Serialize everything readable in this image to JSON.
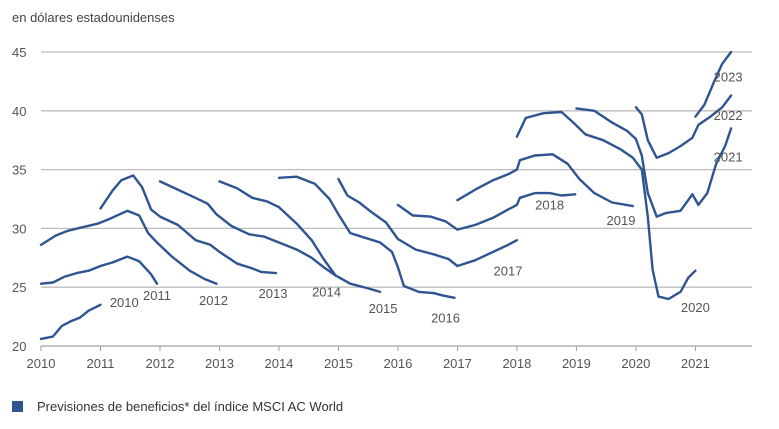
{
  "chart_data": {
    "type": "line",
    "title": "",
    "unit_label": "en dólares estadounidenses",
    "xlabel": "",
    "ylabel": "",
    "xlim": [
      2010,
      2021.75
    ],
    "ylim": [
      20,
      45
    ],
    "x_ticks": [
      "2010",
      "2011",
      "2012",
      "2013",
      "2014",
      "2015",
      "2016",
      "2017",
      "2018",
      "2019",
      "2020",
      "2021"
    ],
    "y_ticks": [
      "20",
      "25",
      "30",
      "35",
      "40",
      "45"
    ],
    "grid": "horizontal",
    "line_color": "#2e5591",
    "legend": {
      "position": "bottom-left",
      "label": "Previsiones de beneficios* del índice MSCI AC World"
    },
    "series": [
      {
        "name": "2010",
        "points": [
          [
            2010.0,
            20.6
          ],
          [
            2010.2,
            20.8
          ],
          [
            2010.35,
            21.7
          ],
          [
            2010.5,
            22.1
          ],
          [
            2010.65,
            22.4
          ],
          [
            2010.8,
            23.0
          ],
          [
            2011.0,
            23.5
          ]
        ]
      },
      {
        "name": "2011",
        "points": [
          [
            2010.0,
            25.3
          ],
          [
            2010.2,
            25.4
          ],
          [
            2010.4,
            25.9
          ],
          [
            2010.6,
            26.2
          ],
          [
            2010.8,
            26.4
          ],
          [
            2011.0,
            26.8
          ],
          [
            2011.2,
            27.1
          ],
          [
            2011.45,
            27.6
          ],
          [
            2011.65,
            27.2
          ],
          [
            2011.85,
            26.1
          ],
          [
            2011.95,
            25.3
          ]
        ]
      },
      {
        "name": "2012",
        "points": [
          [
            2010.0,
            28.6
          ],
          [
            2010.25,
            29.4
          ],
          [
            2010.45,
            29.8
          ],
          [
            2010.7,
            30.1
          ],
          [
            2010.95,
            30.4
          ],
          [
            2011.15,
            30.8
          ],
          [
            2011.45,
            31.5
          ],
          [
            2011.65,
            31.1
          ],
          [
            2011.8,
            29.6
          ],
          [
            2011.95,
            28.8
          ],
          [
            2012.2,
            27.6
          ],
          [
            2012.5,
            26.4
          ],
          [
            2012.75,
            25.7
          ],
          [
            2012.95,
            25.3
          ]
        ]
      },
      {
        "name": "2013",
        "points": [
          [
            2011.0,
            31.7
          ],
          [
            2011.2,
            33.2
          ],
          [
            2011.35,
            34.1
          ],
          [
            2011.55,
            34.5
          ],
          [
            2011.7,
            33.5
          ],
          [
            2011.85,
            31.6
          ],
          [
            2012.0,
            31.0
          ],
          [
            2012.3,
            30.3
          ],
          [
            2012.6,
            29.0
          ],
          [
            2012.85,
            28.6
          ],
          [
            2013.0,
            28.0
          ],
          [
            2013.3,
            27.0
          ],
          [
            2013.55,
            26.6
          ],
          [
            2013.7,
            26.3
          ],
          [
            2013.95,
            26.2
          ]
        ]
      },
      {
        "name": "2014",
        "points": [
          [
            2012.0,
            34.0
          ],
          [
            2012.3,
            33.3
          ],
          [
            2012.55,
            32.7
          ],
          [
            2012.8,
            32.1
          ],
          [
            2012.95,
            31.2
          ],
          [
            2013.2,
            30.2
          ],
          [
            2013.5,
            29.5
          ],
          [
            2013.75,
            29.3
          ],
          [
            2014.0,
            28.8
          ],
          [
            2014.3,
            28.2
          ],
          [
            2014.55,
            27.5
          ],
          [
            2014.75,
            26.7
          ],
          [
            2014.95,
            26.0
          ]
        ]
      },
      {
        "name": "2015",
        "points": [
          [
            2013.0,
            34.0
          ],
          [
            2013.3,
            33.4
          ],
          [
            2013.55,
            32.6
          ],
          [
            2013.8,
            32.3
          ],
          [
            2014.0,
            31.8
          ],
          [
            2014.3,
            30.4
          ],
          [
            2014.55,
            29.0
          ],
          [
            2014.75,
            27.4
          ],
          [
            2014.95,
            26.0
          ],
          [
            2015.2,
            25.3
          ],
          [
            2015.5,
            24.9
          ],
          [
            2015.7,
            24.6
          ]
        ]
      },
      {
        "name": "2016",
        "points": [
          [
            2014.0,
            34.3
          ],
          [
            2014.3,
            34.4
          ],
          [
            2014.6,
            33.8
          ],
          [
            2014.85,
            32.5
          ],
          [
            2015.0,
            31.2
          ],
          [
            2015.2,
            29.6
          ],
          [
            2015.45,
            29.2
          ],
          [
            2015.7,
            28.8
          ],
          [
            2015.9,
            28.0
          ],
          [
            2016.0,
            26.7
          ],
          [
            2016.1,
            25.1
          ],
          [
            2016.35,
            24.6
          ],
          [
            2016.6,
            24.5
          ],
          [
            2016.75,
            24.3
          ],
          [
            2016.95,
            24.1
          ]
        ]
      },
      {
        "name": "2017",
        "points": [
          [
            2015.0,
            34.2
          ],
          [
            2015.15,
            32.8
          ],
          [
            2015.35,
            32.2
          ],
          [
            2015.55,
            31.4
          ],
          [
            2015.8,
            30.5
          ],
          [
            2016.0,
            29.1
          ],
          [
            2016.3,
            28.2
          ],
          [
            2016.6,
            27.8
          ],
          [
            2016.85,
            27.4
          ],
          [
            2017.0,
            26.8
          ],
          [
            2017.3,
            27.3
          ],
          [
            2017.6,
            28.0
          ],
          [
            2017.85,
            28.6
          ],
          [
            2018.0,
            29.0
          ]
        ]
      },
      {
        "name": "2018",
        "points": [
          [
            2016.0,
            32.0
          ],
          [
            2016.25,
            31.1
          ],
          [
            2016.55,
            31.0
          ],
          [
            2016.8,
            30.6
          ],
          [
            2017.0,
            29.9
          ],
          [
            2017.3,
            30.3
          ],
          [
            2017.6,
            30.9
          ],
          [
            2017.85,
            31.6
          ],
          [
            2018.0,
            32.0
          ],
          [
            2018.05,
            32.6
          ],
          [
            2018.3,
            33.0
          ],
          [
            2018.55,
            33.0
          ],
          [
            2018.75,
            32.8
          ],
          [
            2018.98,
            32.9
          ]
        ]
      },
      {
        "name": "2019",
        "points": [
          [
            2017.0,
            32.4
          ],
          [
            2017.3,
            33.3
          ],
          [
            2017.6,
            34.1
          ],
          [
            2017.85,
            34.6
          ],
          [
            2018.0,
            35.0
          ],
          [
            2018.05,
            35.8
          ],
          [
            2018.3,
            36.2
          ],
          [
            2018.6,
            36.3
          ],
          [
            2018.85,
            35.5
          ],
          [
            2019.05,
            34.2
          ],
          [
            2019.3,
            33.0
          ],
          [
            2019.6,
            32.2
          ],
          [
            2019.95,
            31.9
          ]
        ]
      },
      {
        "name": "2020",
        "points": [
          [
            2018.0,
            37.8
          ],
          [
            2018.15,
            39.4
          ],
          [
            2018.45,
            39.8
          ],
          [
            2018.75,
            39.9
          ],
          [
            2018.95,
            39.0
          ],
          [
            2019.15,
            38.0
          ],
          [
            2019.45,
            37.5
          ],
          [
            2019.75,
            36.7
          ],
          [
            2019.95,
            36.0
          ],
          [
            2020.1,
            35.0
          ],
          [
            2020.2,
            31.0
          ],
          [
            2020.28,
            26.5
          ],
          [
            2020.38,
            24.2
          ],
          [
            2020.55,
            24.0
          ],
          [
            2020.75,
            24.6
          ],
          [
            2020.88,
            25.8
          ],
          [
            2021.0,
            26.4
          ]
        ]
      },
      {
        "name": "2021",
        "points": [
          [
            2019.0,
            40.2
          ],
          [
            2019.3,
            40.0
          ],
          [
            2019.6,
            39.0
          ],
          [
            2019.85,
            38.3
          ],
          [
            2020.0,
            37.6
          ],
          [
            2020.1,
            36.2
          ],
          [
            2020.2,
            33.0
          ],
          [
            2020.35,
            31.0
          ],
          [
            2020.5,
            31.3
          ],
          [
            2020.75,
            31.5
          ],
          [
            2020.95,
            32.9
          ],
          [
            2021.05,
            32.0
          ],
          [
            2021.2,
            33.0
          ],
          [
            2021.35,
            35.5
          ],
          [
            2021.5,
            37.0
          ],
          [
            2021.6,
            38.5
          ]
        ]
      },
      {
        "name": "2022",
        "points": [
          [
            2020.0,
            40.3
          ],
          [
            2020.1,
            39.7
          ],
          [
            2020.2,
            37.5
          ],
          [
            2020.35,
            36.0
          ],
          [
            2020.55,
            36.4
          ],
          [
            2020.75,
            37.0
          ],
          [
            2020.95,
            37.7
          ],
          [
            2021.05,
            38.8
          ],
          [
            2021.25,
            39.5
          ],
          [
            2021.45,
            40.3
          ],
          [
            2021.6,
            41.3
          ]
        ]
      },
      {
        "name": "2023",
        "points": [
          [
            2021.0,
            39.5
          ],
          [
            2021.15,
            40.5
          ],
          [
            2021.3,
            42.3
          ],
          [
            2021.45,
            44.0
          ],
          [
            2021.6,
            45.0
          ]
        ]
      }
    ],
    "series_labels": [
      {
        "text": "2010",
        "at": [
          2011.4,
          23.3
        ]
      },
      {
        "text": "2011",
        "at": [
          2011.95,
          23.9
        ]
      },
      {
        "text": "2012",
        "at": [
          2012.9,
          23.5
        ]
      },
      {
        "text": "2013",
        "at": [
          2013.9,
          24.1
        ]
      },
      {
        "text": "2014",
        "at": [
          2014.8,
          24.2
        ]
      },
      {
        "text": "2015",
        "at": [
          2015.75,
          22.8
        ]
      },
      {
        "text": "2016",
        "at": [
          2016.8,
          22.0
        ]
      },
      {
        "text": "2017",
        "at": [
          2017.85,
          26.0
        ]
      },
      {
        "text": "2018",
        "at": [
          2018.55,
          31.6
        ]
      },
      {
        "text": "2019",
        "at": [
          2019.75,
          30.3
        ]
      },
      {
        "text": "2020",
        "at": [
          2021.0,
          22.9
        ]
      },
      {
        "text": "2021",
        "at": [
          2021.55,
          35.7
        ]
      },
      {
        "text": "2022",
        "at": [
          2021.55,
          39.2
        ]
      },
      {
        "text": "2023",
        "at": [
          2021.55,
          42.5
        ]
      }
    ]
  }
}
